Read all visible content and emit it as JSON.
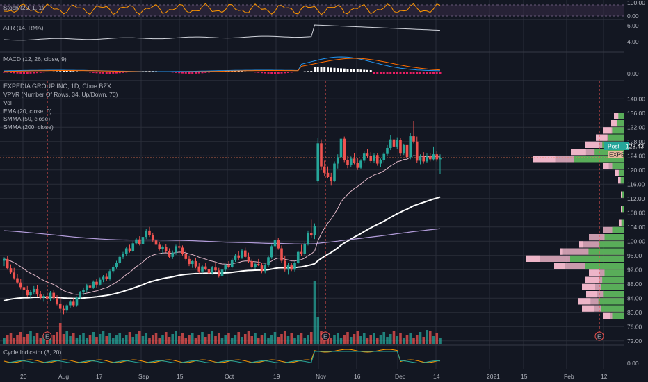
{
  "chart_data": {
    "type": "candlestick",
    "symbol_line": "EXPEDIA GROUP INC, 1D, Cboe BZX",
    "indicators": [
      "VPVR (Number Of Rows, 34, Up/Down, 70)",
      "Vol",
      "EMA (20, close, 0)",
      "SMMA (50, close)",
      "SMMA (200, close)"
    ],
    "pane_titles": {
      "stoch": "Stoch (20, 1, 1)",
      "atr": "ATR (14, RMA)",
      "macd": "MACD (12, 26, close, 9)",
      "cycle": "Cycle Indicator (3, 20)"
    },
    "price_axis": [
      "140.00",
      "136.00",
      "132.00",
      "128.00",
      "124.00",
      "120.00",
      "116.00",
      "112.00",
      "108.00",
      "104.00",
      "100.00",
      "96.00",
      "92.00",
      "88.00",
      "84.00",
      "80.00",
      "76.00",
      "72.00"
    ],
    "stoch_axis": [
      "100.00",
      "0.00"
    ],
    "atr_axis": [
      "6.00",
      "4.00"
    ],
    "macd_axis": [
      "0.00"
    ],
    "cycle_axis": [
      "0.00"
    ],
    "x_axis": [
      "20",
      "Aug",
      "17",
      "Sep",
      "15",
      "Oct",
      "19",
      "Nov",
      "16",
      "Dec",
      "14",
      "2021",
      "15",
      "Feb",
      "12"
    ],
    "last_price": "123.43",
    "post_label": "Post",
    "symbol_badge": "EXPE",
    "earnings_marker": "E",
    "ylim": [
      70,
      142
    ],
    "candles": [
      [
        94.5,
        95.5,
        93.0,
        95.0
      ],
      [
        95.0,
        95.8,
        92.0,
        92.4
      ],
      [
        92.4,
        93.5,
        90.8,
        91.2
      ],
      [
        91.2,
        92.5,
        89.2,
        89.6
      ],
      [
        89.6,
        90.8,
        88.0,
        88.4
      ],
      [
        88.4,
        89.4,
        86.5,
        87.1
      ],
      [
        87.1,
        88.2,
        85.8,
        86.4
      ],
      [
        86.4,
        87.4,
        84.4,
        84.8
      ],
      [
        84.8,
        86.2,
        84.0,
        85.8
      ],
      [
        85.8,
        87.4,
        85.0,
        86.6
      ],
      [
        86.6,
        87.6,
        84.5,
        85.0
      ],
      [
        85.0,
        86.0,
        83.6,
        84.1
      ],
      [
        84.1,
        85.2,
        83.0,
        84.6
      ],
      [
        84.6,
        85.6,
        83.4,
        83.8
      ],
      [
        83.8,
        86.0,
        83.2,
        85.5
      ],
      [
        85.5,
        86.4,
        83.5,
        84.0
      ],
      [
        84.0,
        84.8,
        82.0,
        82.5
      ],
      [
        82.5,
        84.2,
        80.0,
        81.0
      ],
      [
        81.0,
        82.0,
        79.5,
        80.5
      ],
      [
        80.5,
        82.5,
        80.0,
        82.0
      ],
      [
        82.0,
        83.5,
        81.2,
        83.0
      ],
      [
        83.0,
        84.0,
        81.5,
        82.0
      ],
      [
        82.0,
        84.5,
        81.6,
        84.2
      ],
      [
        84.2,
        86.0,
        83.8,
        85.6
      ],
      [
        85.6,
        87.0,
        84.8,
        86.2
      ],
      [
        86.2,
        88.0,
        85.8,
        87.5
      ],
      [
        87.5,
        88.5,
        86.4,
        87.0
      ],
      [
        87.0,
        89.0,
        86.6,
        88.6
      ],
      [
        88.6,
        89.5,
        87.0,
        87.8
      ],
      [
        87.8,
        89.8,
        87.5,
        89.2
      ],
      [
        89.2,
        90.5,
        88.5,
        90.0
      ],
      [
        90.0,
        91.0,
        88.8,
        89.4
      ],
      [
        89.4,
        92.0,
        89.0,
        91.6
      ],
      [
        91.6,
        93.2,
        91.0,
        92.8
      ],
      [
        92.8,
        94.5,
        92.3,
        94.0
      ],
      [
        94.0,
        96.0,
        93.5,
        95.6
      ],
      [
        95.6,
        97.0,
        95.0,
        96.4
      ],
      [
        96.4,
        98.5,
        95.8,
        98.0
      ],
      [
        98.0,
        99.0,
        96.8,
        97.2
      ],
      [
        97.2,
        100.0,
        97.0,
        99.4
      ],
      [
        99.4,
        101.0,
        99.0,
        100.5
      ],
      [
        100.5,
        101.4,
        98.8,
        99.2
      ],
      [
        99.2,
        101.8,
        98.8,
        101.2
      ],
      [
        101.2,
        103.5,
        100.6,
        103.0
      ],
      [
        103.0,
        104.0,
        101.2,
        101.7
      ],
      [
        101.7,
        102.4,
        99.8,
        100.2
      ],
      [
        100.2,
        101.0,
        98.5,
        99.0
      ],
      [
        99.0,
        99.8,
        97.4,
        97.8
      ],
      [
        97.8,
        98.8,
        96.5,
        98.4
      ],
      [
        98.4,
        99.2,
        96.8,
        97.2
      ],
      [
        97.2,
        98.0,
        95.2,
        95.6
      ],
      [
        95.6,
        97.4,
        95.0,
        96.8
      ],
      [
        96.8,
        99.0,
        96.2,
        98.6
      ],
      [
        98.6,
        100.2,
        97.8,
        98.2
      ],
      [
        98.2,
        98.8,
        96.0,
        96.4
      ],
      [
        96.4,
        97.4,
        94.5,
        95.0
      ],
      [
        95.0,
        95.8,
        93.0,
        93.6
      ],
      [
        93.6,
        94.8,
        92.5,
        94.4
      ],
      [
        94.4,
        95.4,
        92.4,
        92.9
      ],
      [
        92.9,
        93.8,
        91.0,
        91.5
      ],
      [
        91.5,
        93.4,
        91.0,
        92.9
      ],
      [
        92.9,
        94.0,
        91.8,
        92.2
      ],
      [
        92.2,
        93.0,
        90.5,
        91.0
      ],
      [
        91.0,
        93.0,
        90.6,
        92.6
      ],
      [
        92.6,
        94.0,
        91.4,
        91.8
      ],
      [
        91.8,
        92.5,
        89.8,
        90.3
      ],
      [
        90.3,
        92.5,
        89.8,
        92.0
      ],
      [
        92.0,
        93.6,
        91.5,
        93.2
      ],
      [
        93.2,
        94.4,
        92.4,
        92.8
      ],
      [
        92.8,
        95.2,
        92.4,
        94.8
      ],
      [
        94.8,
        96.4,
        94.2,
        96.0
      ],
      [
        96.0,
        97.2,
        94.8,
        95.4
      ],
      [
        95.4,
        97.8,
        95.0,
        97.4
      ],
      [
        97.4,
        98.2,
        95.2,
        95.6
      ],
      [
        95.6,
        96.8,
        94.0,
        94.4
      ],
      [
        94.4,
        95.0,
        92.4,
        92.8
      ],
      [
        92.8,
        94.0,
        92.2,
        93.6
      ],
      [
        93.6,
        95.0,
        93.0,
        93.2
      ],
      [
        93.2,
        94.0,
        91.0,
        91.6
      ],
      [
        91.6,
        93.6,
        91.0,
        93.2
      ],
      [
        93.2,
        96.0,
        92.8,
        95.5
      ],
      [
        95.5,
        99.0,
        95.0,
        98.6
      ],
      [
        98.6,
        101.2,
        98.0,
        100.4
      ],
      [
        100.4,
        101.0,
        97.6,
        98.0
      ],
      [
        98.0,
        98.8,
        94.0,
        94.5
      ],
      [
        94.5,
        95.8,
        91.5,
        92.0
      ],
      [
        92.0,
        93.8,
        90.6,
        93.2
      ],
      [
        93.2,
        94.0,
        91.6,
        92.0
      ],
      [
        92.0,
        94.4,
        91.5,
        94.0
      ],
      [
        94.0,
        97.4,
        93.6,
        97.0
      ],
      [
        97.0,
        99.0,
        95.8,
        96.4
      ],
      [
        96.4,
        99.6,
        96.0,
        99.2
      ],
      [
        99.2,
        103.0,
        98.8,
        102.2
      ],
      [
        102.2,
        106.0,
        101.0,
        101.6
      ],
      [
        101.6,
        105.0,
        100.6,
        104.2
      ],
      [
        117.0,
        129.0,
        116.5,
        127.5
      ],
      [
        127.5,
        128.6,
        120.0,
        121.0
      ],
      [
        121.0,
        122.6,
        118.4,
        119.2
      ],
      [
        119.2,
        121.0,
        117.6,
        118.0
      ],
      [
        118.0,
        119.2,
        115.6,
        117.0
      ],
      [
        117.0,
        122.4,
        116.6,
        121.8
      ],
      [
        121.8,
        124.4,
        120.4,
        123.6
      ],
      [
        123.6,
        129.5,
        123.0,
        128.8
      ],
      [
        128.8,
        129.4,
        122.2,
        122.8
      ],
      [
        122.8,
        124.0,
        120.5,
        121.4
      ],
      [
        121.4,
        123.8,
        120.8,
        123.2
      ],
      [
        123.2,
        124.8,
        121.6,
        122.0
      ],
      [
        122.0,
        123.4,
        120.0,
        120.6
      ],
      [
        120.6,
        123.0,
        120.2,
        122.6
      ],
      [
        122.6,
        125.2,
        122.0,
        124.6
      ],
      [
        124.6,
        126.0,
        123.4,
        124.0
      ],
      [
        124.0,
        125.0,
        122.0,
        122.5
      ],
      [
        122.5,
        124.6,
        122.0,
        124.2
      ],
      [
        124.2,
        124.8,
        121.2,
        121.8
      ],
      [
        121.8,
        123.2,
        120.8,
        122.8
      ],
      [
        122.8,
        125.0,
        122.2,
        124.5
      ],
      [
        124.5,
        127.0,
        124.0,
        126.2
      ],
      [
        126.2,
        129.8,
        125.6,
        128.6
      ],
      [
        128.6,
        129.4,
        126.0,
        126.6
      ],
      [
        126.6,
        129.2,
        126.0,
        128.4
      ],
      [
        128.4,
        129.0,
        124.0,
        124.6
      ],
      [
        124.6,
        127.4,
        124.2,
        127.0
      ],
      [
        127.0,
        127.6,
        123.2,
        123.6
      ],
      [
        123.6,
        130.4,
        123.0,
        129.5
      ],
      [
        129.5,
        133.8,
        127.5,
        128.0
      ],
      [
        128.0,
        129.4,
        122.0,
        122.6
      ],
      [
        122.6,
        124.4,
        121.6,
        123.8
      ],
      [
        123.8,
        125.0,
        121.8,
        122.4
      ],
      [
        122.4,
        124.6,
        122.0,
        124.0
      ],
      [
        124.0,
        124.8,
        122.4,
        123.0
      ],
      [
        123.0,
        126.6,
        122.6,
        124.4
      ],
      [
        124.4,
        125.2,
        122.4,
        123.0
      ],
      [
        123.0,
        124.4,
        118.8,
        123.43
      ]
    ]
  }
}
